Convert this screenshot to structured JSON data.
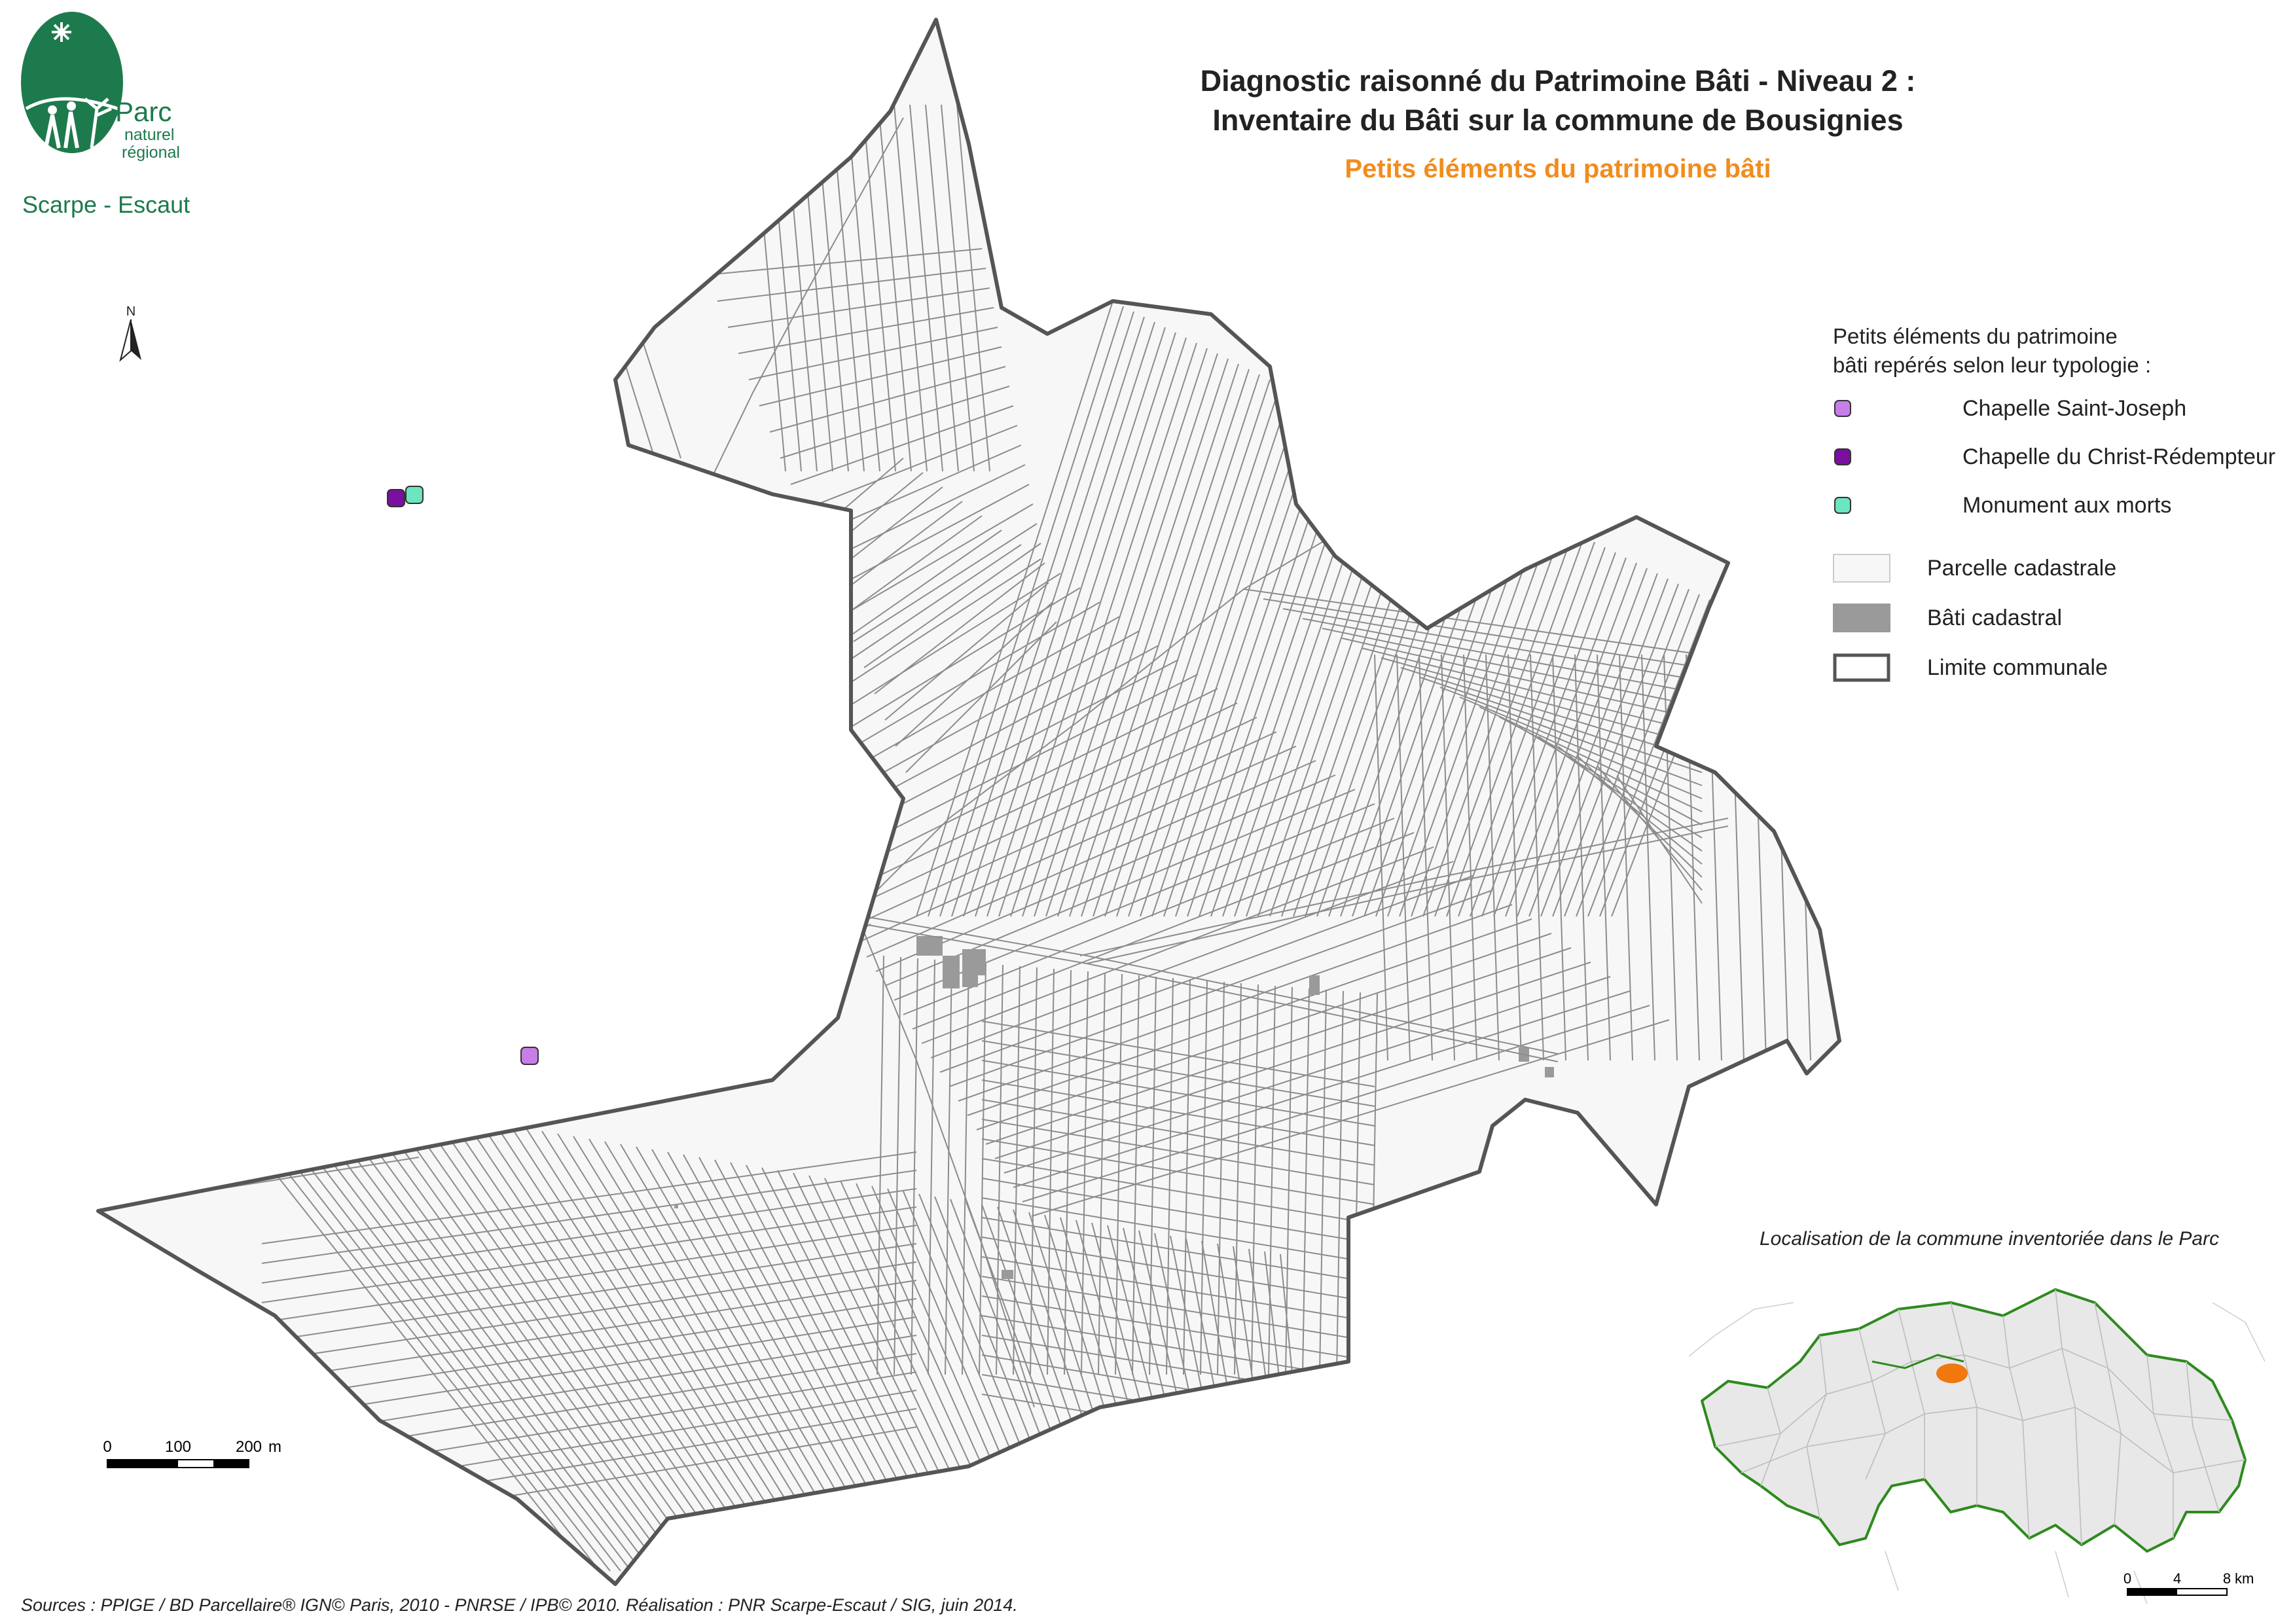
{
  "logo": {
    "line1": "Parc",
    "line2": "naturel",
    "line3": "régional",
    "name": "Scarpe - Escaut",
    "color": "#1d7a4c"
  },
  "title": {
    "line1": "Diagnostic raisonné du Patrimoine Bâti - Niveau 2 :",
    "line2": "Inventaire du Bâti sur la commune de Bousignies",
    "subtitle": "Petits éléments du patrimoine bâti",
    "subtitle_color": "#f28c1e"
  },
  "north_label": "N",
  "legend": {
    "heading1": "Petits éléments du patrimoine",
    "heading2": "bâti repérés selon leur typologie :",
    "items": [
      {
        "label": "Chapelle Saint-Joseph",
        "color": "#c77ee6"
      },
      {
        "label": "Chapelle du Christ-Rédempteur",
        "color": "#7a0fa0"
      },
      {
        "label": "Monument aux morts",
        "color": "#6be6c0"
      },
      {
        "label": "Parcelle cadastrale",
        "color": "#f7f7f7"
      },
      {
        "label": "Bâti cadastral",
        "color": "#9a9a9a"
      },
      {
        "label": "Limite communale",
        "color": "#555555"
      }
    ]
  },
  "scale": {
    "t0": "0",
    "t1": "100",
    "t2": "200",
    "unit": "m"
  },
  "inset": {
    "title": "Localisation de la commune inventoriée dans le Parc",
    "scale": {
      "t0": "0",
      "t1": "4",
      "t2": "8",
      "unit": "km"
    },
    "park_color": "#2e8a1e",
    "commune_color": "#f0780f"
  },
  "sources": "Sources : PPIGE / BD Parcellaire® IGN© Paris, 2010 - PNRSE / IPB© 2010. Réalisation : PNR Scarpe-Escaut / SIG, juin 2014."
}
